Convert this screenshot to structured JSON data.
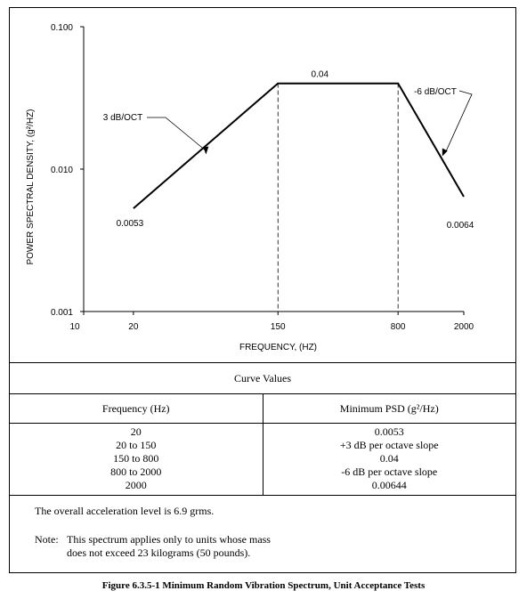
{
  "chart_data": {
    "type": "line",
    "xscale": "log",
    "yscale": "log",
    "x_ticks": [
      {
        "value": 10,
        "label": "10"
      },
      {
        "value": 20,
        "label": "20"
      },
      {
        "value": 150,
        "label": "150"
      },
      {
        "value": 800,
        "label": "800"
      },
      {
        "value": 2000,
        "label": "2000"
      }
    ],
    "y_ticks": [
      {
        "value": 0.001,
        "label": "0.001"
      },
      {
        "value": 0.01,
        "label": "0.010"
      },
      {
        "value": 0.1,
        "label": "0.100"
      }
    ],
    "xlim": [
      10,
      2000
    ],
    "ylim": [
      0.001,
      0.1
    ],
    "xlabel": "FREQUENCY, (HZ)",
    "ylabel": "POWER SPECTRAL DENSITY, (g²/HZ)",
    "series": [
      {
        "x": [
          20,
          150,
          800,
          2000
        ],
        "y": [
          0.0053,
          0.04,
          0.04,
          0.0064
        ]
      }
    ],
    "vertical_dashed_lines_at_x": [
      150,
      800
    ],
    "annotations": [
      {
        "text": "0.0053",
        "x": 20,
        "y": 0.0053
      },
      {
        "text": "0.04",
        "x": 400,
        "y": 0.04
      },
      {
        "text": "0.0064",
        "x": 2000,
        "y": 0.0064
      },
      {
        "text": "3 dB/OCT",
        "arrow_to": {
          "x": 55,
          "y": 0.0125
        }
      },
      {
        "text": "-6 dB/OCT",
        "arrow_to": {
          "x": 1500,
          "y": 0.0125
        }
      }
    ],
    "grid": false,
    "line_color": "#000000"
  },
  "table": {
    "caption": "Curve Values",
    "headers": [
      "Frequency (Hz)",
      "Minimum PSD (g²/Hz)"
    ],
    "rows": [
      [
        "20",
        "0.0053"
      ],
      [
        "20 to 150",
        "+3 dB per octave slope"
      ],
      [
        "150 to 800",
        "0.04"
      ],
      [
        "800 to 2000",
        "-6 dB per octave slope"
      ],
      [
        "2000",
        "0.00644"
      ]
    ]
  },
  "notes": {
    "overall": "The overall acceleration level is 6.9 grms.",
    "label": "Note:",
    "line1": "This spectrum applies only to units whose mass",
    "line2": "does not exceed 23 kilograms (50 pounds)."
  },
  "figure_caption": "Figure 6.3.5-1  Minimum Random Vibration Spectrum, Unit Acceptance Tests"
}
